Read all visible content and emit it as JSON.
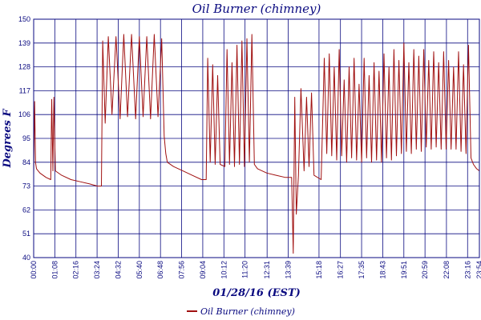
{
  "chart_data": {
    "type": "line",
    "title": "Oil Burner (chimney)",
    "xlabel": "01/28/16 (EST)",
    "ylabel": "Degrees F",
    "x_unit": "time of day (hh:mm)",
    "ylim": [
      40,
      150
    ],
    "yticks": [
      40,
      51,
      62,
      73,
      84,
      95,
      106,
      117,
      128,
      139,
      150
    ],
    "xlim": [
      "00:00",
      "23:54"
    ],
    "xtick_labels": [
      "00:00",
      "01:08",
      "02:16",
      "03:24",
      "04:32",
      "05:40",
      "06:48",
      "07:56",
      "09:04",
      "10:12",
      "11:20",
      "12:31",
      "13:39",
      "15:18",
      "16:27",
      "17:35",
      "18:43",
      "19:51",
      "20:59",
      "22:08",
      "23:16",
      "23:54"
    ],
    "grid": true,
    "legend_position": "bottom-center",
    "line_color": "#a01010",
    "grid_color": "#0a0a80",
    "text_color": "#0a0a80",
    "series": [
      {
        "name": "Oil Burner (chimney)",
        "points": [
          [
            "00:00",
            78
          ],
          [
            "00:03",
            112
          ],
          [
            "00:06",
            84
          ],
          [
            "00:09",
            81
          ],
          [
            "00:20",
            79
          ],
          [
            "00:40",
            77
          ],
          [
            "00:55",
            76
          ],
          [
            "00:58",
            113
          ],
          [
            "01:02",
            80
          ],
          [
            "01:05",
            114
          ],
          [
            "01:10",
            80
          ],
          [
            "01:30",
            78
          ],
          [
            "02:00",
            76
          ],
          [
            "02:30",
            75
          ],
          [
            "03:00",
            74
          ],
          [
            "03:25",
            73
          ],
          [
            "03:38",
            73
          ],
          [
            "03:42",
            140
          ],
          [
            "03:50",
            102
          ],
          [
            "04:00",
            142
          ],
          [
            "04:12",
            106
          ],
          [
            "04:25",
            142
          ],
          [
            "04:38",
            104
          ],
          [
            "04:50",
            143
          ],
          [
            "05:02",
            105
          ],
          [
            "05:15",
            143
          ],
          [
            "05:28",
            104
          ],
          [
            "05:40",
            142
          ],
          [
            "05:52",
            105
          ],
          [
            "06:04",
            142
          ],
          [
            "06:16",
            104
          ],
          [
            "06:28",
            143
          ],
          [
            "06:40",
            105
          ],
          [
            "06:52",
            141
          ],
          [
            "07:00",
            96
          ],
          [
            "07:05",
            88
          ],
          [
            "07:10",
            84
          ],
          [
            "07:30",
            82
          ],
          [
            "08:00",
            80
          ],
          [
            "08:30",
            78
          ],
          [
            "09:00",
            76
          ],
          [
            "09:15",
            76
          ],
          [
            "09:20",
            132
          ],
          [
            "09:28",
            84
          ],
          [
            "09:36",
            129
          ],
          [
            "09:44",
            83
          ],
          [
            "09:52",
            124
          ],
          [
            "10:00",
            83
          ],
          [
            "10:15",
            82
          ],
          [
            "10:22",
            136
          ],
          [
            "10:30",
            83
          ],
          [
            "10:38",
            130
          ],
          [
            "10:46",
            82
          ],
          [
            "10:54",
            138
          ],
          [
            "11:02",
            83
          ],
          [
            "11:10",
            140
          ],
          [
            "11:18",
            82
          ],
          [
            "11:26",
            141
          ],
          [
            "11:34",
            84
          ],
          [
            "11:42",
            143
          ],
          [
            "11:50",
            83
          ],
          [
            "12:00",
            81
          ],
          [
            "12:30",
            79
          ],
          [
            "13:00",
            78
          ],
          [
            "13:30",
            77
          ],
          [
            "13:50",
            77
          ],
          [
            "13:55",
            42
          ],
          [
            "14:00",
            114
          ],
          [
            "14:05",
            60
          ],
          [
            "14:12",
            78
          ],
          [
            "14:20",
            118
          ],
          [
            "14:30",
            80
          ],
          [
            "14:38",
            114
          ],
          [
            "14:46",
            82
          ],
          [
            "14:54",
            116
          ],
          [
            "15:02",
            78
          ],
          [
            "15:25",
            76
          ],
          [
            "15:35",
            132
          ],
          [
            "15:43",
            88
          ],
          [
            "15:51",
            134
          ],
          [
            "15:59",
            87
          ],
          [
            "16:07",
            128
          ],
          [
            "16:15",
            85
          ],
          [
            "16:23",
            136
          ],
          [
            "16:31",
            87
          ],
          [
            "16:39",
            122
          ],
          [
            "16:47",
            84
          ],
          [
            "16:55",
            128
          ],
          [
            "17:03",
            86
          ],
          [
            "17:11",
            132
          ],
          [
            "17:19",
            85
          ],
          [
            "17:27",
            120
          ],
          [
            "17:35",
            84
          ],
          [
            "17:43",
            132
          ],
          [
            "17:51",
            86
          ],
          [
            "17:59",
            124
          ],
          [
            "18:07",
            84
          ],
          [
            "18:15",
            130
          ],
          [
            "18:23",
            85
          ],
          [
            "18:31",
            126
          ],
          [
            "18:39",
            84
          ],
          [
            "18:47",
            134
          ],
          [
            "18:55",
            86
          ],
          [
            "19:03",
            128
          ],
          [
            "19:11",
            85
          ],
          [
            "19:19",
            136
          ],
          [
            "19:27",
            87
          ],
          [
            "19:35",
            131
          ],
          [
            "19:43",
            88
          ],
          [
            "19:51",
            139
          ],
          [
            "19:59",
            89
          ],
          [
            "20:07",
            130
          ],
          [
            "20:15",
            88
          ],
          [
            "20:23",
            136
          ],
          [
            "20:31",
            90
          ],
          [
            "20:39",
            133
          ],
          [
            "20:47",
            89
          ],
          [
            "20:55",
            136
          ],
          [
            "21:03",
            91
          ],
          [
            "21:11",
            131
          ],
          [
            "21:19",
            90
          ],
          [
            "21:27",
            135
          ],
          [
            "21:35",
            91
          ],
          [
            "21:43",
            130
          ],
          [
            "21:51",
            90
          ],
          [
            "21:59",
            135
          ],
          [
            "22:07",
            90
          ],
          [
            "22:15",
            131
          ],
          [
            "22:23",
            90
          ],
          [
            "22:31",
            128
          ],
          [
            "22:39",
            90
          ],
          [
            "22:47",
            135
          ],
          [
            "22:55",
            89
          ],
          [
            "23:03",
            129
          ],
          [
            "23:11",
            88
          ],
          [
            "23:19",
            138
          ],
          [
            "23:27",
            86
          ],
          [
            "23:35",
            83
          ],
          [
            "23:45",
            81
          ],
          [
            "23:54",
            80
          ]
        ]
      }
    ]
  }
}
